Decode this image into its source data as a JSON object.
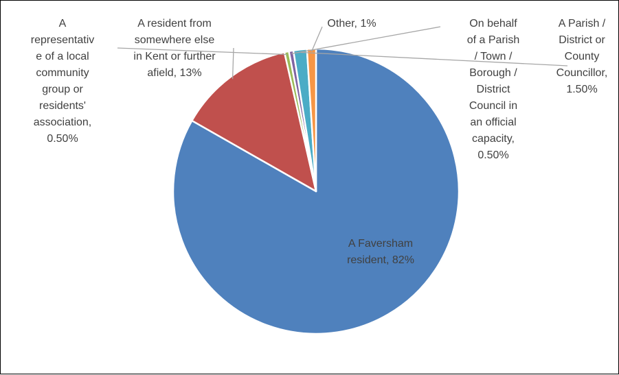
{
  "chart_data": {
    "type": "pie",
    "title": "",
    "start_angle_deg": 0,
    "direction": "clockwise",
    "slices": [
      {
        "label_lines": [
          "A Faversham",
          "resident, 82%"
        ],
        "category": "A Faversham resident",
        "value": 82,
        "color": "#4f81bd"
      },
      {
        "label_lines": [
          "A resident from",
          "somewhere else",
          "in Kent or further",
          "afield, 13%"
        ],
        "category": "A resident from somewhere else in Kent or further afield",
        "value": 13,
        "color": "#c0504d"
      },
      {
        "label_lines": [
          "A",
          "representativ",
          "e of a local",
          "community",
          "group or",
          "residents'",
          "association,",
          "0.50%"
        ],
        "category": "A representative of a local community group or residents' association",
        "value": 0.5,
        "color": "#9bbb59"
      },
      {
        "label_lines": [
          "On behalf",
          "of a Parish",
          "/ Town /",
          "Borough /",
          "District",
          "Council in",
          "an official",
          "capacity,",
          "0.50%"
        ],
        "category": "On behalf of a Parish / Town / Borough / District Council in an official capacity",
        "value": 0.5,
        "color": "#8064a2"
      },
      {
        "label_lines": [
          "A Parish /",
          "District or",
          "County",
          "Councillor,",
          "1.50%"
        ],
        "category": "A Parish / District or County Councillor",
        "value": 1.5,
        "color": "#4bacc6"
      },
      {
        "label_lines": [
          "Other, 1%"
        ],
        "category": "Other",
        "value": 1,
        "color": "#f79646"
      }
    ],
    "legend": "none",
    "data_labels": "outside-with-leader-lines"
  }
}
